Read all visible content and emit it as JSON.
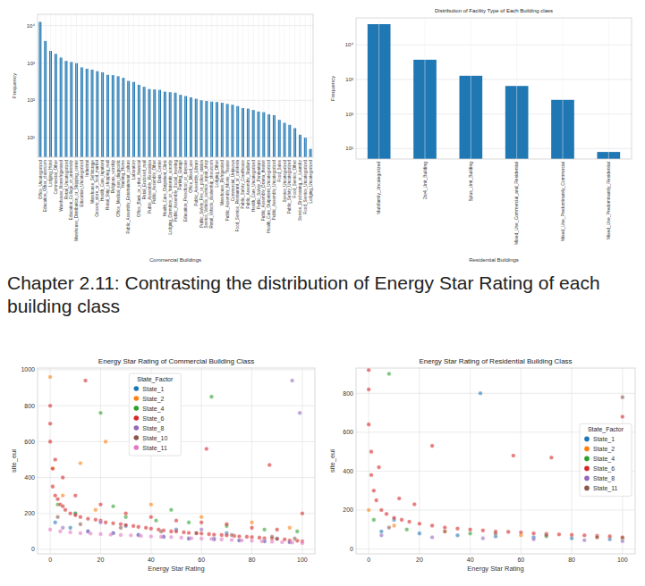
{
  "heading": "Chapter 2.11: Contrasting the distribution of Energy Star Rating of each building class",
  "chart_data": [
    {
      "type": "bar",
      "xlabel": "Commercial Buildings",
      "ylabel": "Frequency",
      "color": "#1f77b4",
      "log": "y",
      "grid": true,
      "ylim": [
        3,
        20000
      ],
      "yticks": [
        {
          "value": 10,
          "label": "10¹"
        },
        {
          "value": 100,
          "label": "10²"
        },
        {
          "value": 1000,
          "label": "10³"
        },
        {
          "value": 10000,
          "label": "10⁴"
        }
      ],
      "categories": [
        "Office_Uncategorized",
        "Education_Other_classroom",
        "Lodging_Hotel",
        "Commercial_Other",
        "Warehouse_Nonrefrigerated",
        "Retail_Uncategorized",
        "Education_College_or_university",
        "Warehouse_Distribution_or_Shipping_center",
        "Education_Uncategorized",
        "Industrial",
        "Warehouse_Selfstorage",
        "Grocery_store_or_food_market",
        "Health_Care_Inpatient",
        "Retail_Strip_shopping_mall",
        "Religious_worship",
        "Office_Medical_non_diagnostic",
        "Nursing_Home",
        "Public_Assembly_Entertainment_culture",
        "Laboratory",
        "Office_Bank_or_other_financial",
        "Retail_Enclosed_mall",
        "Public_Assembly_Recreation",
        "Public_Assembly_Other",
        "Data_Center",
        "Health_Care_Outpatient_Clinic",
        "Lodging_Dormitory_or_fraternity_sorority",
        "Public_Assembly_Social_meeting",
        "Parking_Garage",
        "Education_Preschool_or_daycare",
        "Office_Mixed_use",
        "Public_Assembly_Library",
        "Public_Safety_Fire_or_police_station",
        "Service_Vehicle_service_repair_shop",
        "Retail_Vehicle_dealership_showroom",
        "Lodging_Other",
        "Warehouse_Refrigerated",
        "Public_Assembly_Movie_Theater",
        "Commercial_Unknown",
        "Food_Service_Restaurant_or_cafeteria",
        "Public_Safety_Courthouse",
        "Public_Assembly_Stadium",
        "Health_Care_Uncategorized",
        "Public_Safety_Penitentiary",
        "Public_Assembly_Drama_theater",
        "Health_Care_Outpatient_Uncategorized",
        "Public_Assembly_Uncategorized",
        "Food_Sales",
        "Service_Uncategorized",
        "Public_Safety_Uncategorized",
        "Food_Service_Other",
        "Service_Drycleaning_or_Laundry",
        "Food_Service_Uncategorized",
        "Lodging_Uncategorized"
      ],
      "values": [
        12512,
        3860,
        2098,
        1744,
        1390,
        1130,
        1056,
        980,
        760,
        700,
        660,
        600,
        560,
        480,
        470,
        440,
        400,
        330,
        310,
        260,
        230,
        200,
        195,
        190,
        170,
        165,
        160,
        140,
        130,
        120,
        110,
        100,
        96,
        92,
        90,
        86,
        80,
        76,
        70,
        62,
        60,
        55,
        50,
        48,
        42,
        40,
        30,
        25,
        22,
        18,
        12,
        10,
        5
      ]
    },
    {
      "type": "bar",
      "title": "Distribution of Facility Type of Each Building class",
      "xlabel": "Residential Buildings",
      "ylabel": "Frequency",
      "color": "#1f77b4",
      "log": "y",
      "grid": true,
      "ylim": [
        5,
        60000
      ],
      "yticks": [
        {
          "value": 10,
          "label": "10¹"
        },
        {
          "value": 100,
          "label": "10²"
        },
        {
          "value": 1000,
          "label": "10³"
        },
        {
          "value": 10000,
          "label": "10⁴"
        }
      ],
      "categories": [
        "Multifamily_Uncategorized",
        "2to4_Unit_Building",
        "5plus_Unit_Building",
        "Mixed_Use_Commercial_and_Residential",
        "Mixed_Use_Predominantly_Commercial",
        "Mixed_Use_Predominantly_Residential"
      ],
      "values": [
        39455,
        3701,
        1273,
        646,
        256,
        8
      ]
    },
    {
      "type": "scatter",
      "title": "Energy Star Rating of Commercial Building Class",
      "xlabel": "Energy Star Rating",
      "ylabel": "site_eui",
      "grid": true,
      "legend": "upper center",
      "legend_title": "State_Factor",
      "xlim": [
        -5,
        105
      ],
      "xticks": [
        0,
        20,
        40,
        60,
        80,
        100
      ],
      "ylim": [
        -25,
        1010
      ],
      "yticks": [
        0,
        200,
        400,
        600,
        800,
        1000
      ],
      "series": [
        {
          "name": "State_1",
          "color": "#1f77b4",
          "x": [
            2,
            8,
            15,
            25,
            35,
            45,
            55,
            65,
            75,
            85,
            95,
            50,
            30,
            70,
            90,
            10
          ],
          "values": [
            150,
            120,
            100,
            90,
            80,
            70,
            60,
            60,
            50,
            45,
            40,
            110,
            130,
            90,
            60,
            200
          ]
        },
        {
          "name": "State_2",
          "color": "#ff7f0e",
          "x": [
            0,
            1,
            5,
            12,
            18,
            22,
            40,
            60,
            80,
            95
          ],
          "values": [
            960,
            450,
            300,
            480,
            220,
            600,
            250,
            180,
            150,
            120
          ]
        },
        {
          "name": "State_4",
          "color": "#2ca02c",
          "x": [
            3,
            10,
            20,
            30,
            42,
            55,
            64,
            70,
            85,
            98,
            48,
            25
          ],
          "values": [
            250,
            200,
            760,
            180,
            160,
            150,
            850,
            130,
            110,
            100,
            220,
            240
          ]
        },
        {
          "name": "State_6",
          "color": "#d62728",
          "x": [
            0,
            0,
            1,
            1,
            2,
            3,
            4,
            5,
            6,
            8,
            10,
            12,
            15,
            18,
            20,
            22,
            25,
            28,
            30,
            33,
            35,
            38,
            40,
            43,
            45,
            48,
            50,
            53,
            55,
            58,
            60,
            63,
            65,
            68,
            70,
            73,
            75,
            78,
            80,
            83,
            85,
            88,
            90,
            93,
            95,
            98,
            100,
            0,
            2,
            5,
            10,
            20,
            30,
            40,
            50,
            60,
            70,
            80,
            90,
            100,
            14,
            37,
            62,
            87
          ],
          "values": [
            800,
            600,
            450,
            350,
            300,
            280,
            250,
            240,
            220,
            200,
            190,
            180,
            170,
            165,
            160,
            150,
            145,
            140,
            135,
            130,
            125,
            120,
            115,
            110,
            105,
            100,
            100,
            95,
            92,
            90,
            88,
            85,
            82,
            80,
            78,
            75,
            72,
            70,
            68,
            65,
            62,
            60,
            58,
            55,
            50,
            48,
            45,
            700,
            500,
            400,
            300,
            250,
            200,
            180,
            160,
            150,
            140,
            120,
            110,
            200,
            940,
            600,
            560,
            470
          ]
        },
        {
          "name": "State_8",
          "color": "#9467bd",
          "x": [
            5,
            15,
            25,
            35,
            45,
            55,
            65,
            75,
            85,
            95,
            20,
            60,
            96,
            99
          ],
          "values": [
            120,
            100,
            90,
            80,
            70,
            60,
            55,
            50,
            45,
            40,
            150,
            110,
            940,
            760
          ]
        },
        {
          "name": "State_10",
          "color": "#8c564b",
          "x": [
            3,
            12,
            28,
            44,
            58,
            72,
            88,
            97
          ],
          "values": [
            180,
            140,
            120,
            100,
            90,
            80,
            70,
            60
          ]
        },
        {
          "name": "State_11",
          "color": "#e377c2",
          "x": [
            0,
            4,
            8,
            12,
            16,
            20,
            24,
            28,
            32,
            36,
            40,
            44,
            48,
            52,
            56,
            60,
            64,
            68,
            72,
            76,
            80,
            84,
            88,
            92,
            96,
            100
          ],
          "values": [
            110,
            100,
            95,
            90,
            88,
            85,
            82,
            80,
            78,
            75,
            72,
            70,
            68,
            65,
            62,
            60,
            58,
            55,
            52,
            50,
            48,
            45,
            42,
            40,
            38,
            35
          ]
        }
      ]
    },
    {
      "type": "scatter",
      "title": "Energy Star Rating of Residential Building Class",
      "xlabel": "Energy Star Rating",
      "ylabel": "site_eui",
      "grid": true,
      "legend": "center right",
      "legend_title": "State_Factor",
      "xlim": [
        -5,
        105
      ],
      "xticks": [
        0,
        20,
        40,
        60,
        80,
        100
      ],
      "ylim": [
        -25,
        930
      ],
      "yticks": [
        0,
        200,
        400,
        600,
        800
      ],
      "series": [
        {
          "name": "State_1",
          "color": "#1f77b4",
          "x": [
            5,
            20,
            35,
            50,
            65,
            80,
            95,
            44,
            10
          ],
          "values": [
            90,
            80,
            70,
            65,
            60,
            55,
            50,
            800,
            150
          ]
        },
        {
          "name": "State_2",
          "color": "#ff7f0e",
          "x": [
            0,
            10,
            30,
            60,
            90
          ],
          "values": [
            200,
            120,
            90,
            70,
            60
          ]
        },
        {
          "name": "State_4",
          "color": "#2ca02c",
          "x": [
            2,
            15,
            40,
            70,
            100,
            8
          ],
          "values": [
            150,
            100,
            80,
            65,
            55,
            900
          ]
        },
        {
          "name": "State_6",
          "color": "#d62728",
          "x": [
            0,
            0,
            1,
            1,
            2,
            3,
            5,
            7,
            10,
            13,
            16,
            20,
            25,
            30,
            35,
            40,
            45,
            50,
            55,
            60,
            65,
            70,
            75,
            80,
            85,
            90,
            95,
            100,
            0,
            4,
            12,
            25,
            57,
            100,
            18,
            72
          ],
          "values": [
            920,
            640,
            500,
            380,
            300,
            250,
            200,
            180,
            160,
            150,
            140,
            130,
            120,
            110,
            105,
            100,
            95,
            90,
            88,
            85,
            80,
            78,
            75,
            72,
            70,
            68,
            65,
            60,
            820,
            420,
            260,
            530,
            480,
            680,
            230,
            470
          ]
        },
        {
          "name": "State_8",
          "color": "#9467bd",
          "x": [
            5,
            25,
            45,
            65,
            85,
            100
          ],
          "values": [
            70,
            60,
            55,
            50,
            45,
            40
          ]
        },
        {
          "name": "State_11",
          "color": "#8c564b",
          "x": [
            8,
            30,
            50,
            70,
            90,
            100
          ],
          "values": [
            110,
            90,
            80,
            70,
            60,
            780
          ]
        }
      ]
    }
  ]
}
